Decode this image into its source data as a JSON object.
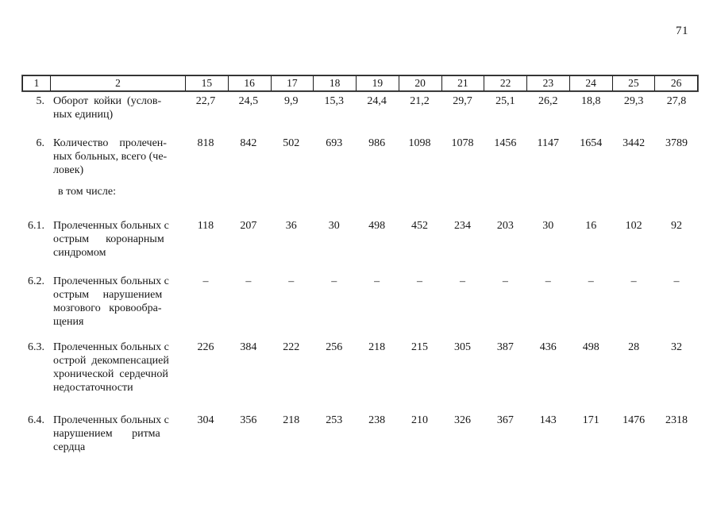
{
  "page": {
    "number": "71"
  },
  "table": {
    "header": [
      "1",
      "2",
      "15",
      "16",
      "17",
      "18",
      "19",
      "20",
      "21",
      "22",
      "23",
      "24",
      "25",
      "26"
    ],
    "subheader": "в том числе:",
    "rows": [
      {
        "num": "5.",
        "label": "Оборот  койки  (услов-\nных единиц)",
        "values": [
          "22,7",
          "24,5",
          "9,9",
          "15,3",
          "24,4",
          "21,2",
          "29,7",
          "25,1",
          "26,2",
          "18,8",
          "29,3",
          "27,8"
        ]
      },
      {
        "num": "6.",
        "label": "Количество    пролечен-\nных больных, всего (че-\nловек)",
        "values": [
          "818",
          "842",
          "502",
          "693",
          "986",
          "1098",
          "1078",
          "1456",
          "1147",
          "1654",
          "3442",
          "3789"
        ]
      },
      {
        "num": "6.1.",
        "label": "Пролеченных больных с\nострым      коронарным\nсиндромом",
        "values": [
          "118",
          "207",
          "36",
          "30",
          "498",
          "452",
          "234",
          "203",
          "30",
          "16",
          "102",
          "92"
        ]
      },
      {
        "num": "6.2.",
        "label": "Пролеченных больных с\nострым     нарушением\nмозгового   кровообра-\nщения",
        "values": [
          "–",
          "–",
          "–",
          "–",
          "–",
          "–",
          "–",
          "–",
          "–",
          "–",
          "–",
          "–"
        ]
      },
      {
        "num": "6.3.",
        "label": "Пролеченных больных с\nострой  декомпенсацией\nхронической  сердечной\nнедостаточности",
        "values": [
          "226",
          "384",
          "222",
          "256",
          "218",
          "215",
          "305",
          "387",
          "436",
          "498",
          "28",
          "32"
        ]
      },
      {
        "num": "6.4.",
        "label": "Пролеченных больных с\nнарушением       ритма\nсердца",
        "values": [
          "304",
          "356",
          "218",
          "253",
          "238",
          "210",
          "326",
          "367",
          "143",
          "171",
          "1476",
          "2318"
        ]
      }
    ]
  }
}
